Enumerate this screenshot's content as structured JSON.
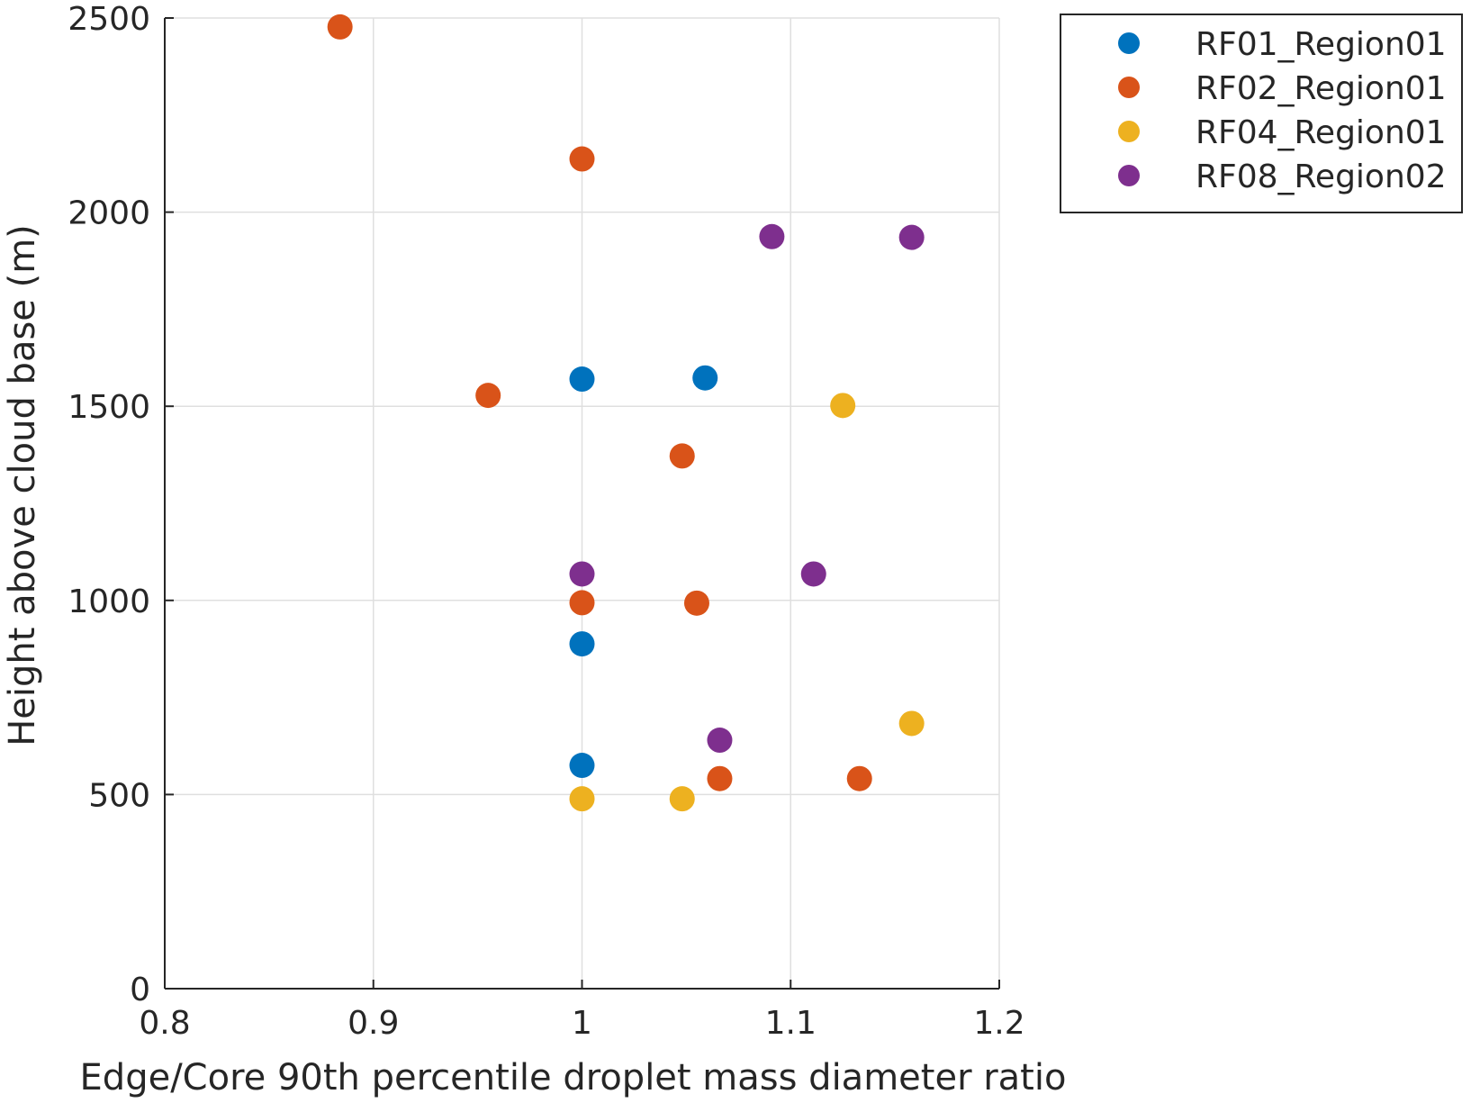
{
  "chart_data": {
    "type": "scatter",
    "title": "",
    "xlabel": "Edge/Core 90th percentile droplet mass diameter ratio",
    "ylabel": "Height above cloud base (m)",
    "xlim": [
      0.8,
      1.2
    ],
    "ylim": [
      0,
      2500
    ],
    "xticks": [
      0.8,
      0.9,
      1,
      1.1,
      1.2
    ],
    "xtick_labels": [
      "0.8",
      "0.9",
      "1",
      "1.1",
      "1.2"
    ],
    "yticks": [
      0,
      500,
      1000,
      1500,
      2000,
      2500
    ],
    "ytick_labels": [
      "0",
      "500",
      "1000",
      "1500",
      "2000",
      "2500"
    ],
    "grid": true,
    "legend_position": "outside-top-right",
    "series": [
      {
        "name": "RF01_Region01",
        "color": "#0072BD",
        "points": [
          {
            "x": 1.0,
            "y": 1570
          },
          {
            "x": 1.059,
            "y": 1573
          },
          {
            "x": 1.0,
            "y": 888
          },
          {
            "x": 1.0,
            "y": 575
          }
        ]
      },
      {
        "name": "RF02_Region01",
        "color": "#D95319",
        "points": [
          {
            "x": 0.884,
            "y": 2477
          },
          {
            "x": 1.0,
            "y": 2137
          },
          {
            "x": 0.955,
            "y": 1528
          },
          {
            "x": 1.048,
            "y": 1372
          },
          {
            "x": 1.0,
            "y": 994
          },
          {
            "x": 1.055,
            "y": 993
          },
          {
            "x": 1.066,
            "y": 541
          },
          {
            "x": 1.133,
            "y": 541
          }
        ]
      },
      {
        "name": "RF04_Region01",
        "color": "#EDB120",
        "points": [
          {
            "x": 1.125,
            "y": 1502
          },
          {
            "x": 1.158,
            "y": 683
          },
          {
            "x": 1.0,
            "y": 489
          },
          {
            "x": 1.048,
            "y": 489
          }
        ]
      },
      {
        "name": "RF08_Region02",
        "color": "#7E2F8E",
        "points": [
          {
            "x": 1.091,
            "y": 1937
          },
          {
            "x": 1.158,
            "y": 1935
          },
          {
            "x": 1.0,
            "y": 1068
          },
          {
            "x": 1.111,
            "y": 1068
          },
          {
            "x": 1.066,
            "y": 640
          }
        ]
      }
    ]
  }
}
